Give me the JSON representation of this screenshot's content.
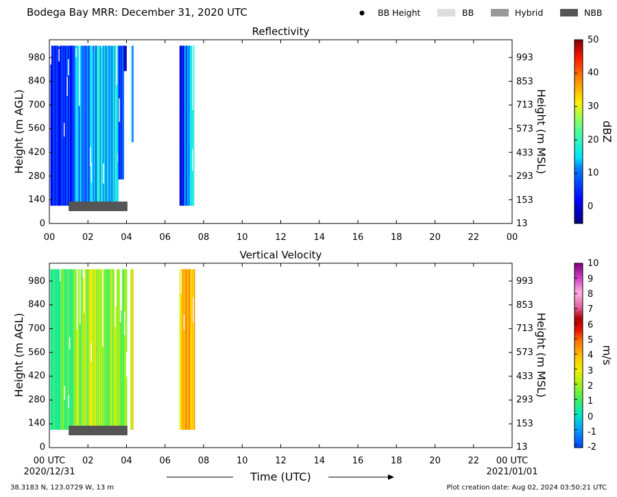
{
  "header": {
    "title": "Bodega Bay MRR:  December 31, 2020 UTC",
    "legend": [
      {
        "label": "BB Height",
        "kind": "dot",
        "color": "#000000"
      },
      {
        "label": "BB",
        "kind": "box",
        "color": "#dddddd"
      },
      {
        "label": "Hybrid",
        "kind": "box",
        "color": "#999999"
      },
      {
        "label": "NBB",
        "kind": "box",
        "color": "#555555"
      }
    ]
  },
  "footer": {
    "x_title": "Time (UTC)",
    "start_date": "2020/12/31",
    "end_date": "2021/01/01",
    "location": "38.3183 N, 123.0729 W, 13 m",
    "creation": "Plot creation date: Aug 02, 2024 03:50:21 UTC"
  },
  "chart_data": [
    {
      "type": "heatmap",
      "title": "Reflectivity",
      "ylabel_left": "Height (m AGL)",
      "ylabel_right": "Height (m MSL)",
      "colorbar_label": "dBZ",
      "colorbar_ticks": [
        "0",
        "10",
        "20",
        "30",
        "40",
        "50"
      ],
      "colorbar_range": [
        -5,
        50
      ],
      "x_tick_labels": [
        "00",
        "02",
        "04",
        "06",
        "08",
        "10",
        "12",
        "14",
        "16",
        "18",
        "20",
        "22",
        "00"
      ],
      "xlim": [
        0,
        24
      ],
      "left_ticks": [
        "0",
        "140",
        "280",
        "420",
        "560",
        "700",
        "840",
        "980"
      ],
      "right_ticks": [
        "13",
        "153",
        "293",
        "433",
        "573",
        "713",
        "853",
        "993"
      ],
      "ylim": [
        0,
        1085
      ],
      "data_height_range": [
        105,
        1050
      ],
      "nbb_bar": [
        1.0,
        4.05
      ],
      "column_groups": [
        {
          "t_start": 0.05,
          "t_end": 1.2,
          "low": 0,
          "high": 10,
          "base": 105
        },
        {
          "t_start": 1.2,
          "t_end": 2.3,
          "low": 4,
          "high": 16,
          "base": 105
        },
        {
          "t_start": 2.3,
          "t_end": 3.55,
          "low": 8,
          "high": 22,
          "base": 105
        },
        {
          "t_start": 3.55,
          "t_end": 3.85,
          "low": 2,
          "high": 12,
          "base": 260
        },
        {
          "t_start": 3.85,
          "t_end": 4.0,
          "low": -2,
          "high": 4,
          "base": 900
        },
        {
          "t_start": 4.25,
          "t_end": 4.33,
          "low": 8,
          "high": 16,
          "base": 480
        },
        {
          "t_start": 6.75,
          "t_end": 7.0,
          "low": -3,
          "high": 8,
          "base": 105
        },
        {
          "t_start": 7.0,
          "t_end": 7.3,
          "low": 6,
          "high": 16,
          "base": 105
        },
        {
          "t_start": 7.3,
          "t_end": 7.5,
          "low": 12,
          "high": 18,
          "base": 105
        }
      ]
    },
    {
      "type": "heatmap",
      "title": "Vertical Velocity",
      "ylabel_left": "Height (m AGL)",
      "ylabel_right": "Height (m MSL)",
      "colorbar_label": "m/s",
      "colorbar_ticks": [
        "-2",
        "-1",
        "0",
        "1",
        "2",
        "3",
        "4",
        "5",
        "6",
        "7",
        "8",
        "9",
        "10"
      ],
      "colorbar_range": [
        -2.2,
        10
      ],
      "x_tick_labels": [
        "00 UTC",
        "02",
        "04",
        "06",
        "08",
        "10",
        "12",
        "14",
        "16",
        "18",
        "20",
        "22",
        "00 UTC"
      ],
      "xlim": [
        0,
        24
      ],
      "left_ticks": [
        "0",
        "140",
        "280",
        "420",
        "560",
        "700",
        "840",
        "980"
      ],
      "right_ticks": [
        "13",
        "153",
        "293",
        "433",
        "573",
        "713",
        "853",
        "993"
      ],
      "ylim": [
        0,
        1085
      ],
      "data_height_range": [
        105,
        1050
      ],
      "nbb_bar": [
        1.0,
        4.05
      ],
      "column_groups": [
        {
          "t_start": 0.05,
          "t_end": 0.6,
          "low": -0.2,
          "high": 1.2,
          "base": 105
        },
        {
          "t_start": 0.6,
          "t_end": 1.3,
          "low": 0.3,
          "high": 2.0,
          "base": 105
        },
        {
          "t_start": 1.3,
          "t_end": 3.5,
          "low": 1.0,
          "high": 3.4,
          "base": 105
        },
        {
          "t_start": 3.5,
          "t_end": 4.0,
          "low": 0.8,
          "high": 2.6,
          "base": 105
        },
        {
          "t_start": 4.2,
          "t_end": 4.32,
          "low": 1.5,
          "high": 4.0,
          "base": 105
        },
        {
          "t_start": 6.75,
          "t_end": 7.5,
          "low": 2.5,
          "high": 5.2,
          "base": 105
        }
      ]
    }
  ]
}
